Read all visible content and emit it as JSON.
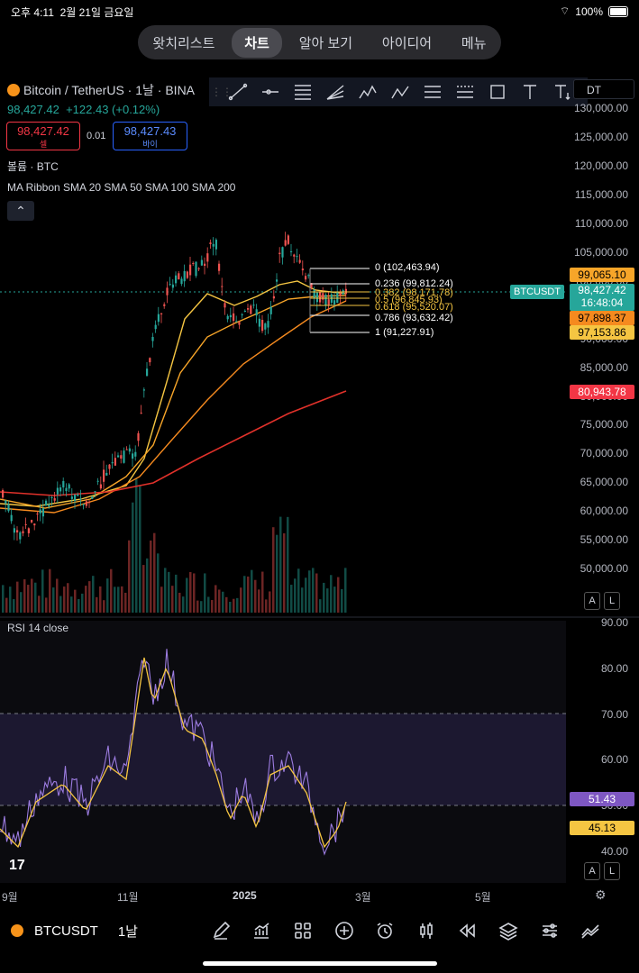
{
  "status": {
    "time": "오후 4:11",
    "date": "2월 21일 금요일",
    "battery": "100%"
  },
  "tabs": [
    "왓치리스트",
    "차트",
    "알아 보기",
    "아이디어",
    "메뉴"
  ],
  "symbol": {
    "title": "Bitcoin / TetherUS · 1날 · BINA",
    "price": "98,427.42",
    "change": "+122.43 (+0.12%)"
  },
  "trade": {
    "sell_price": "98,427.42",
    "sell_label": "셀",
    "spread": "0.01",
    "buy_price": "98,427.43",
    "buy_label": "바이"
  },
  "indicators": {
    "volume": "볼륨 · BTC",
    "ma": "MA Ribbon SMA 20 SMA 50 SMA 100 SMA 200"
  },
  "currency_select": "DT",
  "price_axis": [
    "130,000.00",
    "125,000.00",
    "120,000.00",
    "115,000.00",
    "110,000.00",
    "105,000.00",
    "100,000.00",
    "95,000.00",
    "90,000.00",
    "85,000.00",
    "80,000.00",
    "75,000.00",
    "70,000.00",
    "65,000.00",
    "60,000.00",
    "55,000.00",
    "50,000.00"
  ],
  "price_labels": {
    "ma20": "99,065.10",
    "symbol_tag": "BTCUSDT",
    "last": "98,427.42",
    "countdown": "16:48:04",
    "ma50": "97,898.37",
    "ma100": "97,153.86",
    "ma200": "80,943.78"
  },
  "fib_levels": [
    {
      "label": "0 (102,463.94)"
    },
    {
      "label": "0.236 (99,812.24)"
    },
    {
      "label": "0.382 (98,171.78)"
    },
    {
      "label": "0.5 (96,845.93)"
    },
    {
      "label": "0.618 (95,520.07)"
    },
    {
      "label": "0.786 (93,632.42)"
    },
    {
      "label": "1 (91,227.91)"
    }
  ],
  "rsi": {
    "label": "RSI 14 close",
    "axis": [
      "90.00",
      "80.00",
      "70.00",
      "60.00",
      "50.00",
      "40.00"
    ],
    "value": "51.43",
    "ma_value": "45.13"
  },
  "time_axis": [
    "9월",
    "11월",
    "2025",
    "3월",
    "5월"
  ],
  "scale_buttons": {
    "auto": "A",
    "log": "L"
  },
  "bottom": {
    "symbol": "BTCUSDT",
    "timeframe": "1날"
  },
  "colors": {
    "up": "#26a69a",
    "down": "#ef5350",
    "ma20": "#f5c542",
    "ma50": "#f7a529",
    "ma100": "#f58a1f",
    "ma200": "#e0312a",
    "rsi": "#9c7ce0"
  }
}
